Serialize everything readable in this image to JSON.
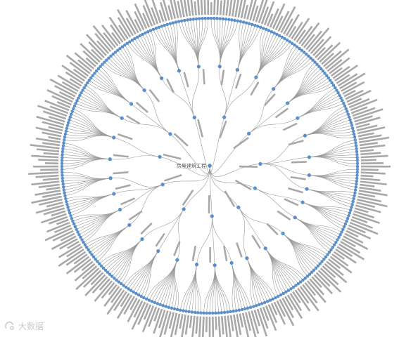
{
  "colors": {
    "node": "#5b8fc9",
    "link": "#9a9a9a",
    "label": "#a8a8a8"
  },
  "watermark": "大数据",
  "tree": {
    "name": "房屋建筑工程",
    "children": [
      {
        "name": "",
        "children": [
          {
            "name": "",
            "children": [
              "",
              "",
              "",
              "",
              "",
              "",
              "",
              "",
              "",
              ""
            ]
          },
          {
            "name": "",
            "children": [
              "",
              "",
              "",
              "",
              "",
              "",
              "",
              ""
            ]
          },
          {
            "name": "",
            "children": [
              "",
              "",
              "",
              "",
              "",
              "",
              "",
              "",
              "",
              "",
              "",
              ""
            ]
          }
        ]
      },
      {
        "name": "",
        "children": [
          {
            "name": "",
            "children": [
              "",
              "",
              "",
              "",
              "",
              "",
              "",
              "",
              ""
            ]
          },
          {
            "name": "",
            "children": [
              "",
              "",
              "",
              "",
              "",
              "",
              "",
              "",
              "",
              "",
              ""
            ]
          },
          {
            "name": "",
            "children": [
              "",
              "",
              "",
              "",
              "",
              "",
              ""
            ]
          }
        ]
      },
      {
        "name": "",
        "children": [
          {
            "name": "",
            "children": [
              "",
              "",
              "",
              "",
              "",
              "",
              "",
              "",
              "",
              "",
              "",
              ""
            ]
          },
          {
            "name": "",
            "children": [
              "",
              "",
              "",
              "",
              "",
              "",
              "",
              "",
              "",
              ""
            ]
          },
          {
            "name": "",
            "children": [
              "",
              "",
              "",
              "",
              "",
              "",
              "",
              ""
            ]
          },
          {
            "name": "",
            "children": [
              "",
              "",
              "",
              "",
              "",
              ""
            ]
          }
        ]
      },
      {
        "name": "",
        "children": [
          {
            "name": "",
            "children": [
              "",
              "",
              "",
              "",
              "",
              "",
              "",
              ""
            ]
          },
          {
            "name": "",
            "children": [
              "",
              "",
              "",
              "",
              "",
              "",
              "",
              "",
              ""
            ]
          }
        ]
      },
      {
        "name": "",
        "children": [
          {
            "name": "",
            "children": [
              "",
              "",
              "",
              "",
              "",
              "",
              "",
              "",
              "",
              "",
              ""
            ]
          },
          {
            "name": "",
            "children": [
              "",
              "",
              "",
              "",
              "",
              "",
              "",
              "",
              "",
              "",
              "",
              ""
            ]
          },
          {
            "name": "",
            "children": [
              "",
              "",
              "",
              "",
              "",
              "",
              "",
              "",
              ""
            ]
          }
        ]
      },
      {
        "name": "",
        "children": [
          {
            "name": "",
            "children": [
              "",
              "",
              "",
              "",
              "",
              "",
              ""
            ]
          },
          {
            "name": "",
            "children": [
              "",
              "",
              "",
              "",
              "",
              "",
              "",
              "",
              "",
              ""
            ]
          },
          {
            "name": "",
            "children": [
              "",
              "",
              "",
              "",
              "",
              "",
              "",
              ""
            ]
          }
        ]
      },
      {
        "name": "",
        "children": [
          {
            "name": "",
            "children": [
              "",
              "",
              "",
              "",
              "",
              "",
              "",
              "",
              "",
              "",
              "",
              ""
            ]
          },
          {
            "name": "",
            "children": [
              "",
              "",
              "",
              "",
              "",
              "",
              "",
              "",
              ""
            ]
          },
          {
            "name": "",
            "children": [
              "",
              "",
              "",
              "",
              "",
              "",
              "",
              "",
              "",
              "",
              ""
            ]
          }
        ]
      },
      {
        "name": "",
        "children": [
          {
            "name": "",
            "children": [
              "",
              "",
              "",
              "",
              "",
              "",
              "",
              ""
            ]
          },
          {
            "name": "",
            "children": [
              "",
              "",
              "",
              "",
              "",
              "",
              "",
              "",
              "",
              ""
            ]
          },
          {
            "name": "",
            "children": [
              "",
              "",
              "",
              "",
              "",
              "",
              ""
            ]
          },
          {
            "name": "",
            "children": [
              "",
              "",
              "",
              "",
              "",
              "",
              "",
              "",
              ""
            ]
          }
        ]
      },
      {
        "name": "",
        "children": [
          {
            "name": "",
            "children": [
              "",
              "",
              "",
              "",
              "",
              "",
              "",
              "",
              "",
              ""
            ]
          },
          {
            "name": "",
            "children": [
              "",
              "",
              "",
              "",
              "",
              "",
              "",
              "",
              "",
              "",
              "",
              ""
            ]
          }
        ]
      },
      {
        "name": "",
        "children": [
          {
            "name": "",
            "children": [
              "",
              "",
              "",
              "",
              "",
              "",
              "",
              "",
              ""
            ]
          },
          {
            "name": "",
            "children": [
              "",
              "",
              "",
              "",
              "",
              "",
              "",
              ""
            ]
          },
          {
            "name": "",
            "children": [
              "",
              "",
              "",
              "",
              "",
              "",
              "",
              "",
              "",
              "",
              ""
            ]
          }
        ]
      },
      {
        "name": "",
        "children": [
          {
            "name": "",
            "children": [
              "",
              "",
              "",
              "",
              "",
              "",
              "",
              "",
              "",
              ""
            ]
          },
          {
            "name": "",
            "children": [
              "",
              "",
              "",
              "",
              "",
              "",
              "",
              "",
              ""
            ]
          },
          {
            "name": "",
            "children": [
              "",
              "",
              "",
              "",
              "",
              "",
              "",
              "",
              "",
              "",
              ""
            ]
          }
        ]
      }
    ]
  }
}
